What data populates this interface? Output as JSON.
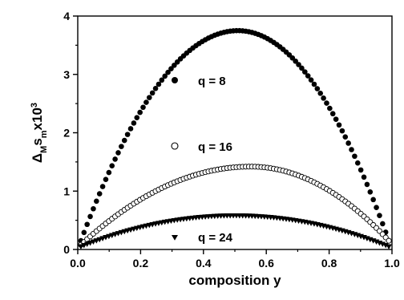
{
  "chart_data": {
    "type": "scatter",
    "title": "",
    "xlabel": "composition y",
    "ylabel": {
      "main": "Δ",
      "sub1": "M",
      "s": "s",
      "sub2": "m",
      "times": "x10",
      "sup": "3"
    },
    "xlim": [
      0,
      1
    ],
    "ylim": [
      0,
      4
    ],
    "x_ticks": [
      0.0,
      0.2,
      0.4,
      0.6,
      0.8,
      1.0
    ],
    "x_tick_labels": [
      "0.0",
      "0.2",
      "0.4",
      "0.6",
      "0.8",
      "1.0"
    ],
    "y_ticks": [
      0,
      1,
      2,
      3,
      4
    ],
    "y_tick_labels": [
      "0",
      "1",
      "2",
      "3",
      "4"
    ],
    "grid": false,
    "legend_placement": "inside, stacked in the middle",
    "series": [
      {
        "name": "q = 8",
        "marker": "filled-circle",
        "color": "#000000",
        "points_per_series": 100,
        "peak": {
          "x": 0.51,
          "y": 3.75
        },
        "edge_values": {
          "y0.01": 0.15,
          "y0.99": 0.15
        }
      },
      {
        "name": "q = 16",
        "marker": "open-circle",
        "color": "#000000",
        "points_per_series": 100,
        "peak": {
          "x": 0.55,
          "y": 1.42
        },
        "edge_values": {
          "y0.01": 0.08,
          "y0.99": 0.15
        }
      },
      {
        "name": "q = 24",
        "marker": "filled-triangle-down",
        "color": "#000000",
        "points_per_series": 100,
        "peak": {
          "x": 0.5,
          "y": 0.58
        },
        "edge_values": {
          "y0.01": 0.05,
          "y0.99": 0.05
        }
      }
    ]
  }
}
